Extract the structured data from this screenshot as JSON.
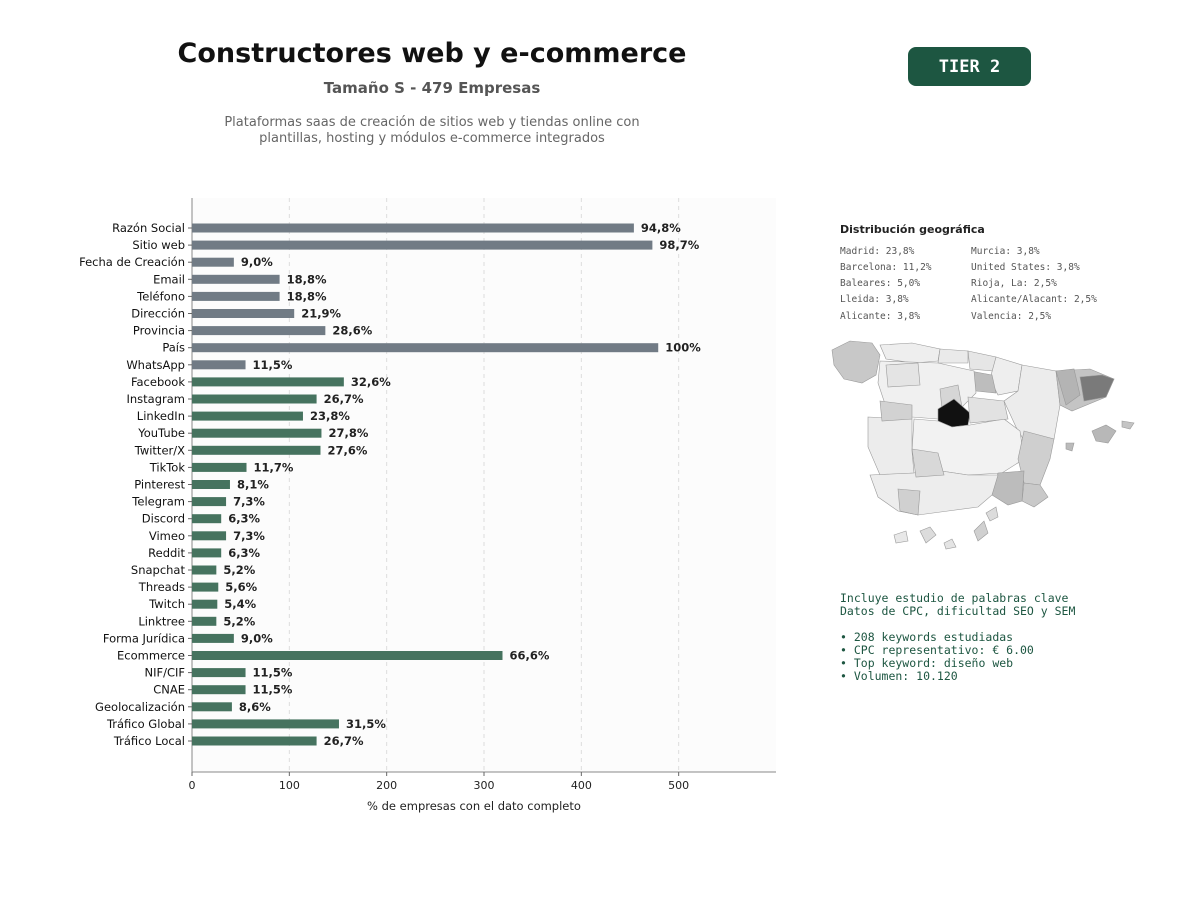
{
  "header": {
    "title": "Constructores web y e-commerce",
    "subtitle": "Tamaño S - 479 Empresas",
    "description_line1": "Plataformas saas de creación de sitios web y tiendas online con",
    "description_line2": "plantillas, hosting y módulos e-commerce integrados",
    "tier_badge": "TIER 2"
  },
  "colors": {
    "gray_bar": "#717b85",
    "green_bar": "#46735f",
    "badge": "#1d5641",
    "keyword_text": "#1d5641"
  },
  "chart_data": {
    "type": "bar",
    "orientation": "horizontal",
    "xlabel": "% de empresas con el dato completo",
    "xlim": [
      0,
      600
    ],
    "xticks": [
      0,
      100,
      200,
      300,
      400,
      500
    ],
    "grid": "vertical dashed",
    "categories": [
      "Razón Social",
      "Sitio web",
      "Fecha de Creación",
      "Email",
      "Teléfono",
      "Dirección",
      "Provincia",
      "País",
      "WhatsApp",
      "Facebook",
      "Instagram",
      "LinkedIn",
      "YouTube",
      "Twitter/X",
      "TikTok",
      "Pinterest",
      "Telegram",
      "Discord",
      "Vimeo",
      "Reddit",
      "Snapchat",
      "Threads",
      "Twitch",
      "Linktree",
      "Forma Jurídica",
      "Ecommerce",
      "NIF/CIF",
      "CNAE",
      "Geolocalización",
      "Tráfico Global",
      "Tráfico Local"
    ],
    "values": [
      454,
      473,
      43,
      90,
      90,
      105,
      137,
      479,
      55,
      156,
      128,
      114,
      133,
      132,
      56,
      39,
      35,
      30,
      35,
      30,
      25,
      27,
      26,
      25,
      43,
      319,
      55,
      55,
      41,
      151,
      128
    ],
    "labels": [
      "94,8%",
      "98,7%",
      "9,0%",
      "18,8%",
      "18,8%",
      "21,9%",
      "28,6%",
      "100%",
      "11,5%",
      "32,6%",
      "26,7%",
      "23,8%",
      "27,8%",
      "27,6%",
      "11,7%",
      "8,1%",
      "7,3%",
      "6,3%",
      "7,3%",
      "6,3%",
      "5,2%",
      "5,6%",
      "5,4%",
      "5,2%",
      "9,0%",
      "66,6%",
      "11,5%",
      "11,5%",
      "8,6%",
      "31,5%",
      "26,7%"
    ],
    "bar_colors": [
      "gray",
      "gray",
      "gray",
      "gray",
      "gray",
      "gray",
      "gray",
      "gray",
      "gray",
      "green",
      "green",
      "green",
      "green",
      "green",
      "green",
      "green",
      "green",
      "green",
      "green",
      "green",
      "green",
      "green",
      "green",
      "green",
      "green",
      "green",
      "green",
      "green",
      "green",
      "green",
      "green"
    ]
  },
  "geo": {
    "title": "Distribución geográfica",
    "col1": [
      "Madrid: 23,8%",
      "Barcelona: 11,2%",
      "Baleares: 5,0%",
      "Lleida: 3,8%",
      "Alicante: 3,8%"
    ],
    "col2": [
      "Murcia: 3,8%",
      "United States: 3,8%",
      "Rioja, La: 2,5%",
      "Alicante/Alacant: 2,5%",
      "Valencia: 2,5%"
    ]
  },
  "keywords": {
    "line1": "Incluye estudio de palabras clave",
    "line2": "Datos de CPC, dificultad SEO y SEM",
    "bullet1": "• 208 keywords estudiadas",
    "bullet2": "• CPC representativo: € 6.00",
    "bullet3": "• Top keyword: diseño web",
    "bullet4": "• Volumen: 10.120"
  }
}
